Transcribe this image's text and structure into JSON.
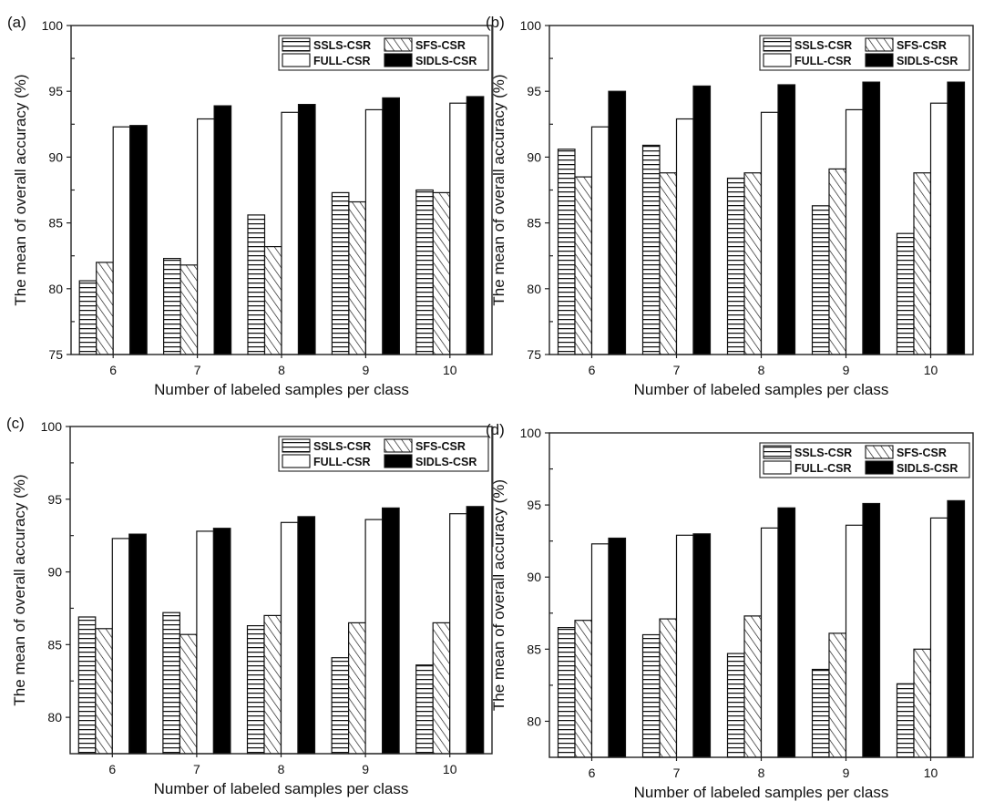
{
  "chart_data": [
    {
      "type": "bar",
      "panel_label": "(a)",
      "xlabel": "Number of labeled samples per class",
      "ylabel": "The mean of overall accuracy (%)",
      "ylim": [
        75,
        100
      ],
      "yticks": [
        75,
        80,
        85,
        90,
        95,
        100
      ],
      "categories": [
        "6",
        "7",
        "8",
        "9",
        "10"
      ],
      "legend_position": "top-right",
      "series": [
        {
          "name": "SSLS-CSR",
          "pattern": "horizontal-lines",
          "values": [
            80.6,
            82.3,
            85.6,
            87.3,
            87.5
          ]
        },
        {
          "name": "SFS-CSR",
          "pattern": "diagonal-lines",
          "values": [
            82.0,
            81.8,
            83.2,
            86.6,
            87.3
          ]
        },
        {
          "name": "FULL-CSR",
          "pattern": "white",
          "values": [
            92.3,
            92.9,
            93.4,
            93.6,
            94.1
          ]
        },
        {
          "name": "SIDLS-CSR",
          "pattern": "black",
          "values": [
            92.4,
            93.9,
            94.0,
            94.5,
            94.6
          ]
        }
      ]
    },
    {
      "type": "bar",
      "panel_label": "(b)",
      "xlabel": "Number of labeled samples per class",
      "ylabel": "The mean of overall accuracy (%)",
      "ylim": [
        75,
        100
      ],
      "yticks": [
        75,
        80,
        85,
        90,
        95,
        100
      ],
      "categories": [
        "6",
        "7",
        "8",
        "9",
        "10"
      ],
      "legend_position": "top-right",
      "series": [
        {
          "name": "SSLS-CSR",
          "pattern": "horizontal-lines",
          "values": [
            90.6,
            90.9,
            88.4,
            86.3,
            84.2
          ]
        },
        {
          "name": "SFS-CSR",
          "pattern": "diagonal-lines",
          "values": [
            88.5,
            88.8,
            88.8,
            89.1,
            88.8
          ]
        },
        {
          "name": "FULL-CSR",
          "pattern": "white",
          "values": [
            92.3,
            92.9,
            93.4,
            93.6,
            94.1
          ]
        },
        {
          "name": "SIDLS-CSR",
          "pattern": "black",
          "values": [
            95.0,
            95.4,
            95.5,
            95.7,
            95.7
          ]
        }
      ]
    },
    {
      "type": "bar",
      "panel_label": "(c)",
      "xlabel": "Number of labeled samples per class",
      "ylabel": "The mean of overall accuracy (%)",
      "ylim": [
        77.5,
        100
      ],
      "yticks": [
        80,
        85,
        90,
        95,
        100
      ],
      "categories": [
        "6",
        "7",
        "8",
        "9",
        "10"
      ],
      "legend_position": "top-right",
      "series": [
        {
          "name": "SSLS-CSR",
          "pattern": "horizontal-lines",
          "values": [
            86.9,
            87.2,
            86.3,
            84.1,
            83.6
          ]
        },
        {
          "name": "SFS-CSR",
          "pattern": "diagonal-lines",
          "values": [
            86.1,
            85.7,
            87.0,
            86.5,
            86.5
          ]
        },
        {
          "name": "FULL-CSR",
          "pattern": "white",
          "values": [
            92.3,
            92.8,
            93.4,
            93.6,
            94.0
          ]
        },
        {
          "name": "SIDLS-CSR",
          "pattern": "black",
          "values": [
            92.6,
            93.0,
            93.8,
            94.4,
            94.5
          ]
        }
      ]
    },
    {
      "type": "bar",
      "panel_label": "(d)",
      "xlabel": "Number of labeled samples per class",
      "ylabel": "The mean of overall accuracy (%)",
      "ylim": [
        77.5,
        100
      ],
      "yticks": [
        80,
        85,
        90,
        95,
        100
      ],
      "categories": [
        "6",
        "7",
        "8",
        "9",
        "10"
      ],
      "legend_position": "top-right",
      "series": [
        {
          "name": "SSLS-CSR",
          "pattern": "horizontal-lines",
          "values": [
            86.5,
            86.0,
            84.7,
            83.6,
            82.6
          ]
        },
        {
          "name": "SFS-CSR",
          "pattern": "diagonal-lines",
          "values": [
            87.0,
            87.1,
            87.3,
            86.1,
            85.0
          ]
        },
        {
          "name": "FULL-CSR",
          "pattern": "white",
          "values": [
            92.3,
            92.9,
            93.4,
            93.6,
            94.1
          ]
        },
        {
          "name": "SIDLS-CSR",
          "pattern": "black",
          "values": [
            92.7,
            93.0,
            94.8,
            95.1,
            95.3
          ]
        }
      ]
    }
  ]
}
